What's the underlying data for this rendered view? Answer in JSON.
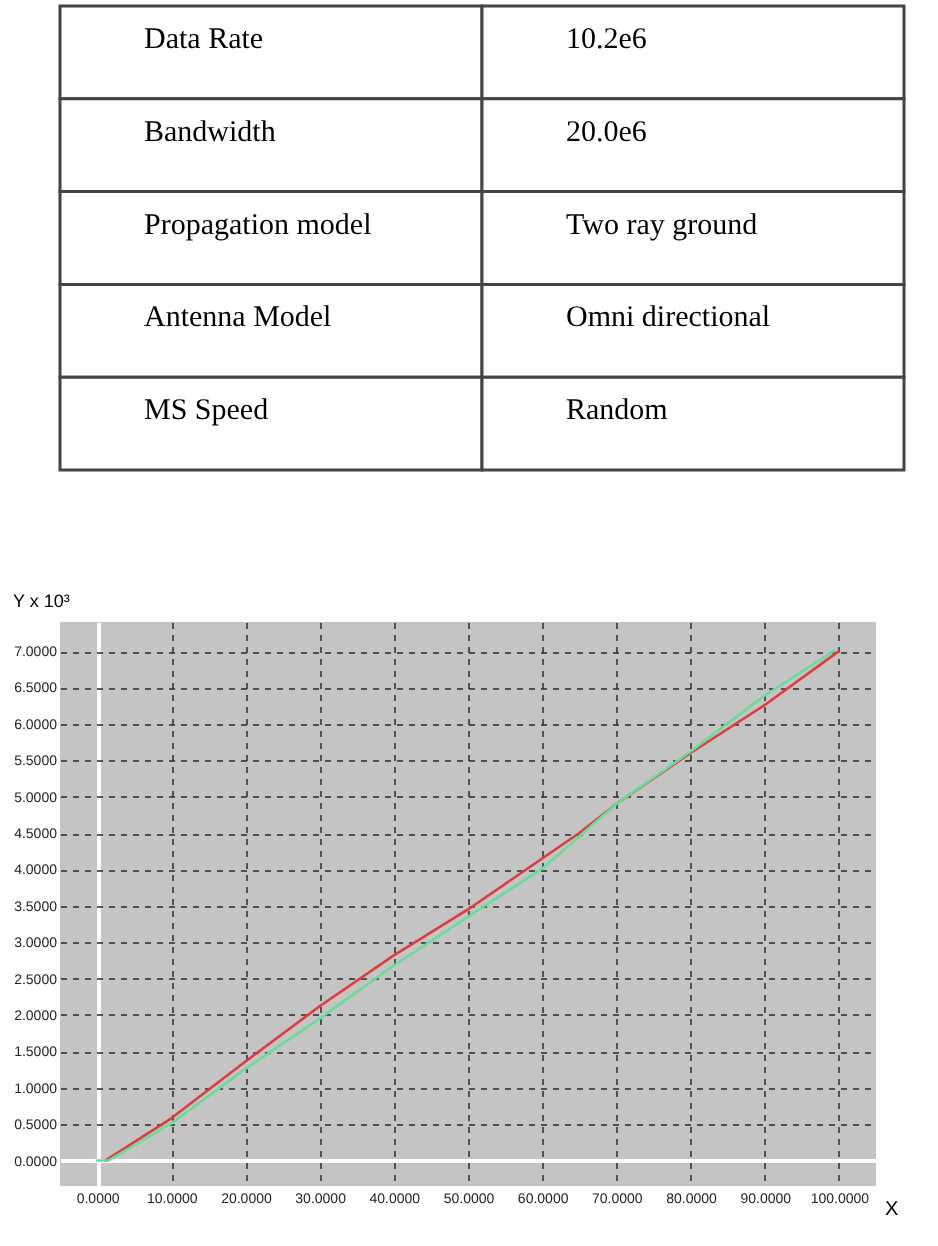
{
  "chart_data": [
    {
      "type": "other",
      "annotations": [
        "Data Rate",
        "10.2e6",
        "Bandwidth",
        "20.0e6",
        "Propagation model",
        "Two ray ground",
        "Antenna Model",
        "Omni directional",
        "MS Speed",
        "Random"
      ]
    },
    {
      "type": "line",
      "ylabel": "Y x 10³",
      "xlabel": "X",
      "xlim": [
        -5,
        105
      ],
      "ylim": [
        -0.35,
        7.4
      ],
      "xticks": [
        {
          "value": 0,
          "label": "0.0000"
        },
        {
          "value": 10,
          "label": "10.0000"
        },
        {
          "value": 20,
          "label": "20.0000"
        },
        {
          "value": 30,
          "label": "30.0000"
        },
        {
          "value": 40,
          "label": "40.0000"
        },
        {
          "value": 50,
          "label": "50.0000"
        },
        {
          "value": 60,
          "label": "60.0000"
        },
        {
          "value": 70,
          "label": "70.0000"
        },
        {
          "value": 80,
          "label": "80.0000"
        },
        {
          "value": 90,
          "label": "90.0000"
        },
        {
          "value": 100,
          "label": "100.0000"
        }
      ],
      "yticks": [
        {
          "value": 0,
          "label": "0.0000"
        },
        {
          "value": 0.5,
          "label": "0.5000"
        },
        {
          "value": 1,
          "label": "1.0000"
        },
        {
          "value": 1.5,
          "label": "1.5000"
        },
        {
          "value": 2,
          "label": "2.0000"
        },
        {
          "value": 2.5,
          "label": "2.5000"
        },
        {
          "value": 3,
          "label": "3.0000"
        },
        {
          "value": 3.5,
          "label": "3.5000"
        },
        {
          "value": 4,
          "label": "4.0000"
        },
        {
          "value": 4.5,
          "label": "4.5000"
        },
        {
          "value": 5,
          "label": "5.0000"
        },
        {
          "value": 5.5,
          "label": "5.5000"
        },
        {
          "value": 6,
          "label": "6.0000"
        },
        {
          "value": 6.5,
          "label": "6.5000"
        },
        {
          "value": 7,
          "label": "7.0000"
        }
      ],
      "grid": true,
      "marker": "none",
      "line_style": "solid",
      "series": [
        {
          "color": "#e03c3c",
          "x": [
            1.1,
            10,
            20,
            30,
            40,
            50,
            60,
            65,
            70,
            80,
            90,
            100
          ],
          "values": [
            0,
            0.58,
            1.36,
            2.12,
            2.82,
            3.45,
            4.15,
            4.5,
            4.9,
            5.6,
            6.26,
            7.0
          ]
        },
        {
          "color": "#66dd99",
          "x": [
            0,
            1.5,
            10,
            20,
            30,
            40,
            50,
            60,
            70,
            80,
            90,
            99.3
          ],
          "values": [
            0,
            0,
            0.51,
            1.26,
            1.95,
            2.68,
            3.35,
            4.01,
            4.9,
            5.62,
            6.39,
            7.0
          ]
        }
      ]
    }
  ]
}
